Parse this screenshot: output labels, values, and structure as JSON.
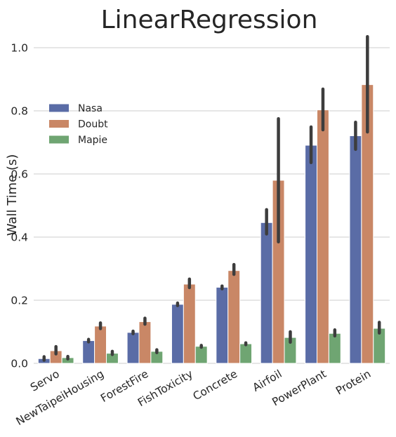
{
  "chart_data": {
    "type": "bar",
    "title": "LinearRegression",
    "xlabel": "",
    "ylabel": "Wall Time (s)",
    "ylim": [
      0,
      1.0
    ],
    "yticks": [
      "0.0",
      "0.2",
      "0.4",
      "0.6",
      "0.8",
      "1.0"
    ],
    "grid": "horizontal",
    "legend_position": "upper-left",
    "categories": [
      "Servo",
      "NewTaipeiHousing",
      "ForestFire",
      "FishToxicity",
      "Concrete",
      "Airfoil",
      "PowerPlant",
      "Protein"
    ],
    "series": [
      {
        "name": "Nasa",
        "color": "#5a6ca6",
        "values": [
          0.015,
          0.072,
          0.098,
          0.187,
          0.241,
          0.446,
          0.691,
          0.721
        ],
        "err_low": [
          0.01,
          0.068,
          0.094,
          0.183,
          0.236,
          0.41,
          0.636,
          0.678
        ],
        "err_high": [
          0.021,
          0.076,
          0.102,
          0.191,
          0.245,
          0.487,
          0.749,
          0.764
        ]
      },
      {
        "name": "Doubt",
        "color": "#c98766",
        "values": [
          0.04,
          0.118,
          0.132,
          0.251,
          0.294,
          0.58,
          0.803,
          0.883
        ],
        "err_low": [
          0.03,
          0.11,
          0.124,
          0.24,
          0.282,
          0.385,
          0.74,
          0.733
        ],
        "err_high": [
          0.053,
          0.128,
          0.143,
          0.267,
          0.313,
          0.775,
          0.869,
          1.035
        ]
      },
      {
        "name": "Mapie",
        "color": "#6fa572",
        "values": [
          0.018,
          0.032,
          0.038,
          0.054,
          0.062,
          0.082,
          0.095,
          0.111
        ],
        "err_low": [
          0.014,
          0.028,
          0.034,
          0.051,
          0.059,
          0.067,
          0.087,
          0.096
        ],
        "err_high": [
          0.022,
          0.038,
          0.043,
          0.057,
          0.065,
          0.1,
          0.106,
          0.13
        ]
      }
    ]
  }
}
